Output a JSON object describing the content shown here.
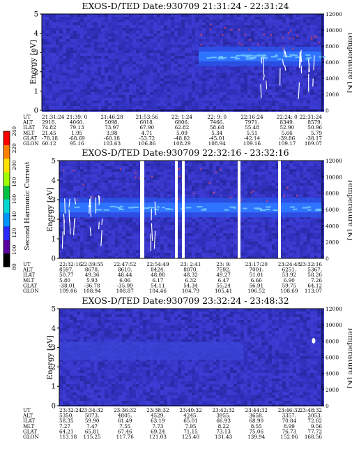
{
  "chart_data": [
    {
      "type": "heatmap",
      "title": "EXOS-D/TED   Date:930709   21:31:24 - 22:31:24",
      "ylabel": "Energy [eV]",
      "y2label": "Temperature [K]",
      "ylim": [
        0,
        5
      ],
      "y2lim": [
        0,
        12000
      ],
      "yticks": [
        "0",
        "1",
        "2",
        "3",
        "4",
        "5"
      ],
      "y2ticks": [
        "0",
        "2000",
        "4000",
        "6000",
        "8000",
        "10000",
        "12000"
      ],
      "band_energy_ev": 2.8,
      "gaps": [],
      "ephemeris": {
        "UT": [
          "21:31:24",
          "21:39: 0",
          "21:46:28",
          "21:53:56",
          "22: 1:24",
          "22: 9: 0",
          "22:16:24",
          "22:24: 0",
          "22:31:24"
        ],
        "ALT": [
          "2918.",
          "4060.",
          "5098.",
          "6018.",
          "6806.",
          "7466.",
          "7971.",
          "8349.",
          "8579."
        ],
        "ILAT": [
          "74.82",
          "79.13",
          "73.97",
          "67.90",
          "62.82",
          "58.68",
          "55.48",
          "52.90",
          "50.96"
        ],
        "MLT": [
          "21.45",
          "1.95",
          "3.98",
          "4.71",
          "5.09",
          "5.34",
          "5.51",
          "5.66",
          "5.79"
        ],
        "GLAT": [
          "-78.18",
          "-68.69",
          "-60.18",
          "-53.72",
          "-48.82",
          "-45.01",
          "-42.14",
          "-39.86",
          "-38.17"
        ],
        "GLON": [
          "60.12",
          "95.16",
          "103.63",
          "106.86",
          "108.29",
          "108.94",
          "109.16",
          "109.17",
          "109.07"
        ]
      }
    },
    {
      "type": "heatmap",
      "title": "EXOS-D/TED   Date:930709   22:32:16 - 23:32:16",
      "ylabel": "Energy [eV]",
      "y2label": "Temperature [K]",
      "ylim": [
        0,
        5
      ],
      "y2lim": [
        0,
        12000
      ],
      "yticks": [
        "0",
        "1",
        "2",
        "3",
        "4",
        "5"
      ],
      "y2ticks": [
        "0",
        "2000",
        "4000",
        "6000",
        "8000",
        "10000",
        "12000"
      ],
      "band_energy_ev": 2.6,
      "gaps": [],
      "ephemeris": {
        "UT": [
          "22:32:16",
          "22:39:55",
          "22:47:52",
          "22:54:49",
          "23: 2:41",
          "23: 9:",
          "23:17:20",
          "23:24:48",
          "23:32:16"
        ],
        "ALT": [
          "8597.",
          "8678.",
          "8610.",
          "8424.",
          "8070.",
          "7592.",
          "7001.",
          "6251.",
          "5367."
        ],
        "ILAT": [
          "50.77",
          "49.36",
          "48.44",
          "48.08",
          "48.32",
          "49.27",
          "51.01",
          "53.92",
          "58.26"
        ],
        "MLT": [
          "5.80",
          "5.93",
          "6.06",
          "6.17",
          "6.32",
          "6.47",
          "6.66",
          "6.90",
          "7.26"
        ],
        "GLAT": [
          "-38.01",
          "-36.78",
          "-35.99",
          "54.11",
          "54.34",
          "55.24",
          "56.91",
          "59.75",
          "64.12"
        ],
        "GLON": [
          "109.06",
          "108.94",
          "108.87",
          "104.46",
          "104.79",
          "105.41",
          "106.52",
          "108.69",
          "113.07"
        ]
      }
    },
    {
      "type": "heatmap",
      "title": "EXOS-D/TED   Date:930709   23:32:24 - 23:48:32",
      "ylabel": "Energy [eV]",
      "y2label": "Temperature [K]",
      "ylim": [
        0,
        5
      ],
      "y2lim": [
        0,
        12000
      ],
      "yticks": [
        "0",
        "1",
        "2",
        "3",
        "4",
        "5"
      ],
      "y2ticks": [
        "0",
        "2000",
        "4000",
        "6000",
        "8000",
        "10000",
        "12000"
      ],
      "band_energy_ev": 2.5,
      "gaps": [],
      "ephemeris": {
        "UT": [
          "23:32:24",
          "23:34:32",
          "23:36:32",
          "23:38:32",
          "23:40:32",
          "23:42:32",
          "23:44:32",
          "23:46:32",
          "23:48:32"
        ],
        "ALT": [
          "5350.",
          "5073.",
          "4805.",
          "4529.",
          "4245.",
          "3955.",
          "3658.",
          "3357.",
          "3053."
        ],
        "ILAT": [
          "58.35",
          "59.90",
          "61.49",
          "63.19",
          "65.01",
          "66.93",
          "68.90",
          "70.84",
          "72.62"
        ],
        "MLT": [
          "7.27",
          "7.47",
          "7.55",
          "7.73",
          "7.95",
          "8.22",
          "8.55",
          "8.99",
          "9.56"
        ],
        "GLAT": [
          "64.21",
          "65.81",
          "67.46",
          "69.24",
          "71.15",
          "73.13",
          "75.06",
          "76.73",
          "77.72"
        ],
        "GLON": [
          "113.18",
          "115.25",
          "117.76",
          "121.03",
          "125.40",
          "131.43",
          "139.94",
          "152.06",
          "168.56"
        ]
      }
    }
  ],
  "colorbar": {
    "label": "Second Harmonic Current",
    "ticks": [
      "80",
      "100",
      "120",
      "140",
      "160",
      "180",
      "200",
      "220",
      "240"
    ],
    "colors": [
      "#000000",
      "#5a00a0",
      "#2a2aff",
      "#0094ff",
      "#00d8d0",
      "#00c040",
      "#a0ff00",
      "#ffe000",
      "#ff8000",
      "#ff0000"
    ]
  },
  "row_labels": [
    "UT",
    "ALT",
    "ILAT",
    "MLT",
    "GLAT",
    "GLON"
  ],
  "colors": {
    "background": "#3030c8",
    "band": "#2a64ff",
    "band_core": "#4a90ff",
    "spike": "#ffffff",
    "gap": "#ffffff"
  }
}
